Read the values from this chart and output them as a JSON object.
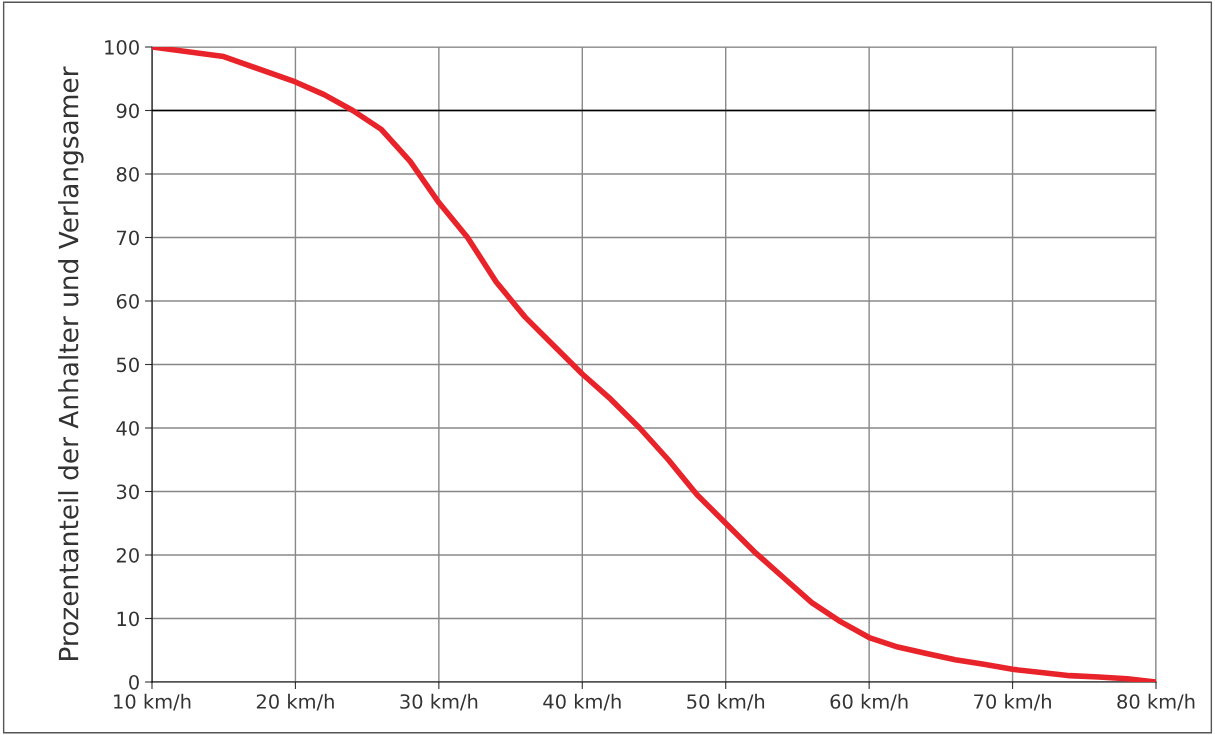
{
  "chart_data": {
    "type": "line",
    "ylabel": "Prozentanteil der Anhalter und Verlangsamer",
    "x": [
      10,
      15,
      20,
      22,
      24,
      26,
      28,
      30,
      32,
      34,
      36,
      38,
      40,
      42,
      44,
      46,
      48,
      50,
      52,
      54,
      56,
      58,
      60,
      62,
      64,
      66,
      68,
      70,
      72,
      74,
      76,
      78,
      80
    ],
    "series": [
      {
        "color": "#e8232a",
        "values": [
          100,
          98.5,
          94.5,
          92.5,
          90,
          87,
          82,
          75.5,
          70,
          63,
          57.5,
          53,
          48.5,
          44.5,
          40,
          35,
          29.5,
          25,
          20.5,
          16.5,
          12.5,
          9.5,
          7,
          5.5,
          4.5,
          3.5,
          2.8,
          2,
          1.5,
          1,
          0.8,
          0.5,
          0
        ]
      }
    ],
    "xlim": [
      10,
      80
    ],
    "ylim": [
      0,
      100
    ],
    "xticks": [
      {
        "value": 10,
        "label": "10 km/h"
      },
      {
        "value": 20,
        "label": "20 km/h"
      },
      {
        "value": 30,
        "label": "30 km/h"
      },
      {
        "value": 40,
        "label": "40 km/h"
      },
      {
        "value": 50,
        "label": "50 km/h"
      },
      {
        "value": 60,
        "label": "60 km/h"
      },
      {
        "value": 70,
        "label": "70 km/h"
      },
      {
        "value": 80,
        "label": "80 km/h"
      }
    ],
    "yticks": [
      0,
      10,
      20,
      30,
      40,
      50,
      60,
      70,
      80,
      90,
      100
    ],
    "ref_lines": [
      {
        "axis": "y",
        "value": 90,
        "color": "#000000"
      }
    ],
    "grid": true,
    "marker": "none",
    "line_style": "solid",
    "legend": false
  }
}
